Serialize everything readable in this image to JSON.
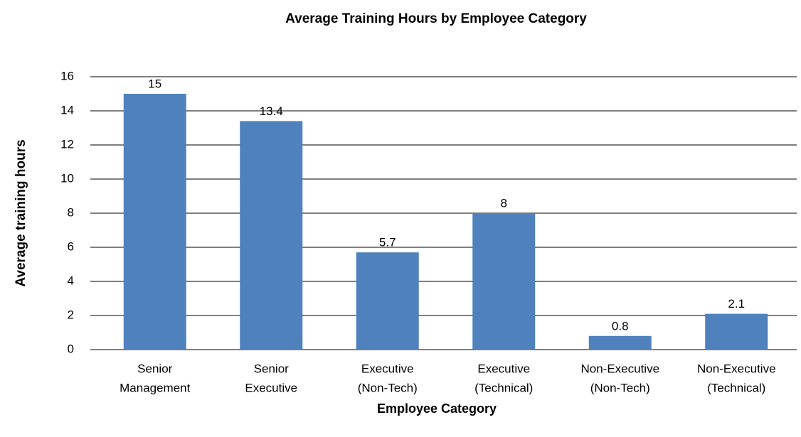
{
  "chart_data": {
    "type": "bar",
    "title": "Average Training Hours by Employee Category",
    "x_label": "Employee Category",
    "y_label": "Average training hours",
    "categories": [
      [
        "Senior",
        "Management"
      ],
      [
        "Senior",
        "Executive"
      ],
      [
        "Executive",
        "(Non-Tech)"
      ],
      [
        "Executive",
        "(Technical)"
      ],
      [
        "Non-Executive",
        "(Non-Tech)"
      ],
      [
        "Non-Executive",
        "(Technical)"
      ]
    ],
    "values": [
      15,
      13.4,
      5.7,
      8,
      0.8,
      2.1
    ],
    "color": "#4f81bd",
    "ylim": [
      0,
      16
    ],
    "yticks": [
      0,
      2,
      4,
      6,
      8,
      10,
      12,
      14,
      16
    ],
    "grid": true
  }
}
